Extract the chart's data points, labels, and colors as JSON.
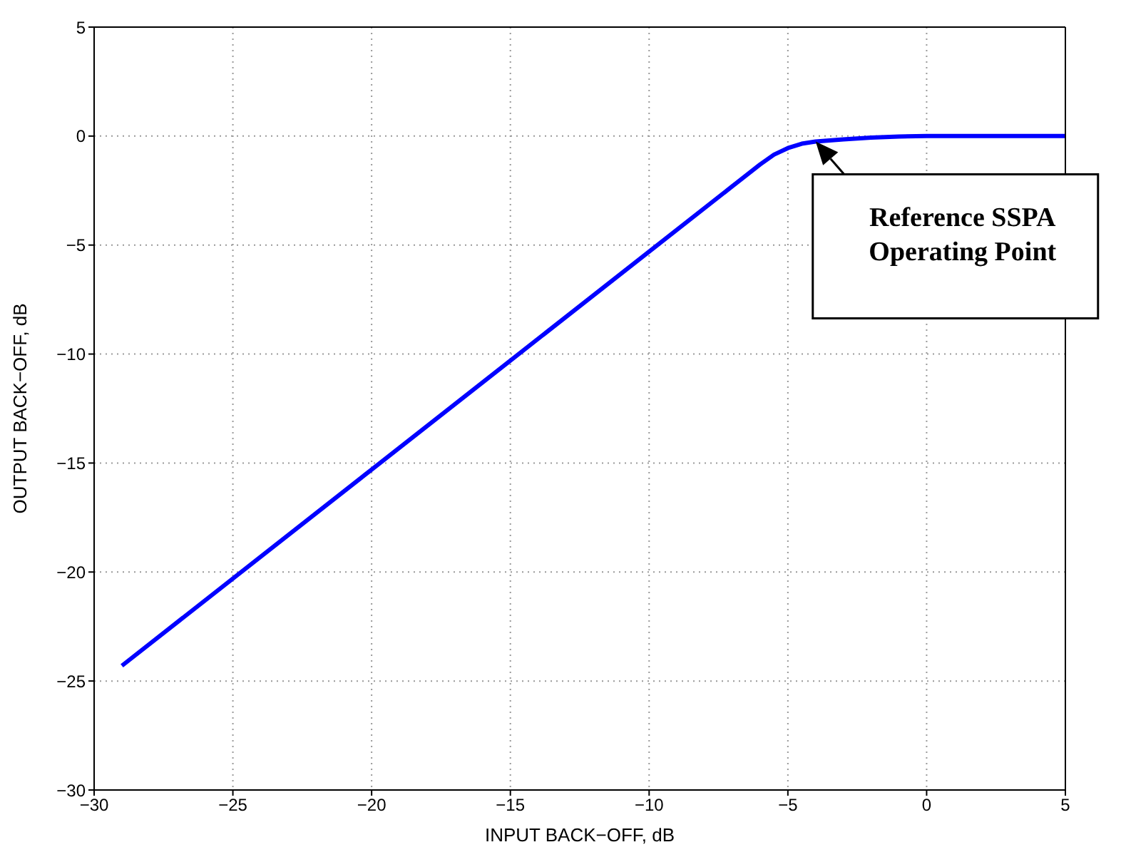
{
  "chart_data": {
    "type": "line",
    "xlabel": "INPUT BACK−OFF, dB",
    "ylabel": "OUTPUT BACK−OFF, dB",
    "series": [
      {
        "color": "#0000ff",
        "x": [
          -29,
          -20,
          -10,
          -7,
          -6,
          -5.5,
          -5,
          -4.5,
          -4,
          -3,
          -2,
          -1,
          0,
          5
        ],
        "values": [
          -24.3,
          -15.3,
          -5.3,
          -2.3,
          -1.3,
          -0.85,
          -0.55,
          -0.35,
          -0.25,
          -0.15,
          -0.07,
          -0.02,
          0,
          0
        ]
      }
    ],
    "xlim": [
      -30,
      5
    ],
    "xticks": [
      -30,
      -25,
      -20,
      -15,
      -10,
      -5,
      0,
      5
    ],
    "ylim": [
      -30,
      5
    ],
    "yticks": [
      -30,
      -25,
      -20,
      -15,
      -10,
      -5,
      0,
      5
    ],
    "grid": true,
    "marker": "none",
    "line_style": "solid",
    "legend": false,
    "annotations": [
      {
        "text": "Reference SSPA Operating Point",
        "x": -4,
        "y": -0.25
      }
    ]
  }
}
